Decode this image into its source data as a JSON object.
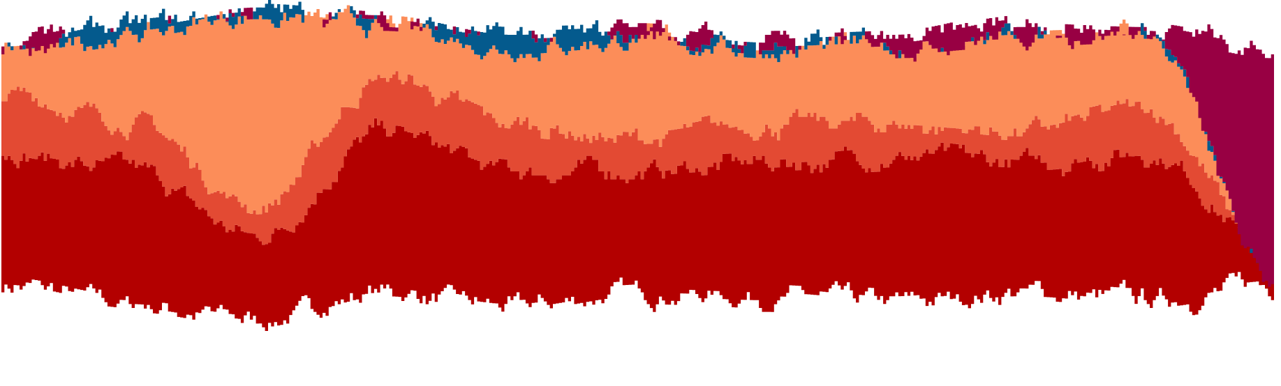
{
  "chart_data": {
    "type": "area",
    "stacked": true,
    "title": "",
    "xlabel": "",
    "ylabel": "",
    "axes_visible": false,
    "grid": false,
    "legend": "none",
    "x": [
      0,
      10,
      20,
      30,
      40,
      50,
      60,
      70,
      80,
      90,
      100
    ],
    "ylim": [
      -2,
      2
    ],
    "layer_colors": [
      "#b30000",
      "#e34a33",
      "#fc8d59",
      "#045a8d",
      "#980043"
    ],
    "layers": [
      {
        "base": [
          -1.45,
          -1.7,
          -1.9,
          -1.55,
          -1.75,
          -1.55,
          -1.6,
          -1.7,
          -1.55,
          -1.65,
          -1.45
        ],
        "top": [
          0.25,
          0.0,
          -0.85,
          0.5,
          0.0,
          0.0,
          0.1,
          0.2,
          0.1,
          0.25,
          -1.0
        ]
      },
      {
        "base": [
          0.25,
          0.0,
          -0.85,
          0.5,
          0.0,
          0.0,
          0.1,
          0.2,
          0.1,
          0.25,
          -1.0
        ],
        "top": [
          1.0,
          0.65,
          -0.45,
          1.2,
          0.6,
          0.4,
          0.6,
          0.6,
          0.5,
          0.8,
          -1.1
        ]
      },
      {
        "base": [
          1.0,
          0.65,
          -0.45,
          1.2,
          0.6,
          0.4,
          0.6,
          0.6,
          0.5,
          0.8,
          -1.1
        ],
        "top": [
          1.55,
          1.75,
          2.0,
          1.85,
          1.6,
          1.7,
          1.55,
          1.6,
          1.7,
          1.75,
          -1.45
        ]
      },
      {
        "base": [
          1.55,
          1.75,
          2.0,
          1.85,
          1.6,
          1.7,
          1.55,
          1.6,
          1.7,
          1.75,
          -1.45
        ],
        "top": [
          1.6,
          1.85,
          2.05,
          1.95,
          1.7,
          1.75,
          1.6,
          1.65,
          1.75,
          1.8,
          -1.45
        ]
      },
      {
        "base": [
          1.6,
          1.85,
          2.05,
          1.95,
          1.7,
          1.75,
          1.6,
          1.65,
          1.75,
          1.8,
          -1.45
        ],
        "top": [
          1.6,
          1.85,
          2.05,
          1.95,
          1.7,
          1.75,
          1.6,
          1.65,
          1.9,
          1.85,
          1.6
        ]
      }
    ]
  }
}
